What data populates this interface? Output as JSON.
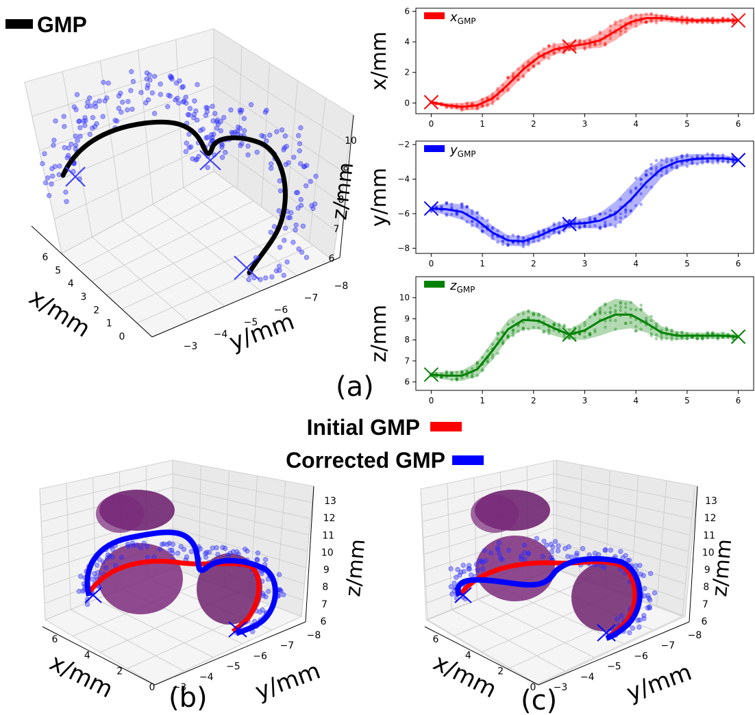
{
  "legend_top": {
    "label": "GMP",
    "color": "#000000"
  },
  "legend_bottom": [
    {
      "label": "Initial GMP",
      "color": "#ff0000"
    },
    {
      "label": "Corrected GMP",
      "color": "#0000ff"
    }
  ],
  "panels": {
    "a": "(a)",
    "b": "(b)",
    "c": "(c)"
  },
  "chart_data": [
    {
      "type": "scatter3d",
      "panel": "(a)",
      "xlabel": "x/mm",
      "ylabel": "y/mm",
      "zlabel": "z/mm",
      "x_ticks": [
        "6",
        "5",
        "4",
        "3",
        "2",
        "1",
        "0"
      ],
      "y_ticks": [
        "−3",
        "−4",
        "−5",
        "−6",
        "−7",
        "−8"
      ],
      "z_ticks": [
        "6",
        "7",
        "8",
        "9",
        "10"
      ],
      "series": [
        {
          "name": "GMP",
          "color": "#000000"
        }
      ]
    },
    {
      "type": "line",
      "panel": "(a) top",
      "ylabel": "x/mm",
      "legend": "x_GMP",
      "legend_main": "x",
      "legend_sub": "GMP",
      "color": "#ff0000",
      "xlim": [
        -0.3,
        6.3
      ],
      "ylim": [
        -0.7,
        6.2
      ],
      "x_ticks": [
        0,
        1,
        2,
        3,
        4,
        5,
        6
      ],
      "y_ticks": [
        0,
        2,
        4,
        6
      ],
      "mean": {
        "x": [
          0,
          0.3,
          0.6,
          0.9,
          1.2,
          1.5,
          1.8,
          2.1,
          2.4,
          2.7,
          3.0,
          3.3,
          3.6,
          3.9,
          4.2,
          4.5,
          4.8,
          5.1,
          5.4,
          5.7,
          6.0
        ],
        "y": [
          0.05,
          -0.15,
          -0.25,
          -0.15,
          0.3,
          1.2,
          2.2,
          3.0,
          3.5,
          3.7,
          3.85,
          4.1,
          4.7,
          5.3,
          5.55,
          5.55,
          5.45,
          5.4,
          5.4,
          5.4,
          5.4
        ]
      },
      "band": [
        0.05,
        0.15,
        0.25,
        0.3,
        0.35,
        0.45,
        0.45,
        0.4,
        0.35,
        0.3,
        0.3,
        0.5,
        0.6,
        0.45,
        0.3,
        0.2,
        0.2,
        0.15,
        0.15,
        0.15,
        0.1
      ],
      "via_points": [
        {
          "x": 0,
          "y": 0.05
        },
        {
          "x": 2.7,
          "y": 3.7
        },
        {
          "x": 6,
          "y": 5.4
        }
      ]
    },
    {
      "type": "line",
      "panel": "(a) middle",
      "ylabel": "y/mm",
      "legend": "y_GMP",
      "legend_main": "y",
      "legend_sub": "GMP",
      "color": "#0000ff",
      "xlim": [
        -0.3,
        6.3
      ],
      "ylim": [
        -8.3,
        -1.8
      ],
      "x_ticks": [
        0,
        1,
        2,
        3,
        4,
        5,
        6
      ],
      "y_ticks": [
        -8,
        -6,
        -4,
        -2
      ],
      "mean": {
        "x": [
          0,
          0.3,
          0.6,
          0.9,
          1.2,
          1.5,
          1.8,
          2.1,
          2.4,
          2.7,
          3.0,
          3.3,
          3.6,
          3.9,
          4.2,
          4.5,
          4.8,
          5.1,
          5.4,
          5.7,
          6.0
        ],
        "y": [
          -5.7,
          -5.75,
          -5.9,
          -6.4,
          -7.1,
          -7.55,
          -7.6,
          -7.3,
          -6.9,
          -6.6,
          -6.55,
          -6.4,
          -6.0,
          -5.2,
          -4.2,
          -3.4,
          -3.0,
          -2.85,
          -2.8,
          -2.8,
          -2.9
        ]
      },
      "band": [
        0.15,
        0.35,
        0.45,
        0.45,
        0.4,
        0.3,
        0.3,
        0.3,
        0.3,
        0.25,
        0.3,
        0.45,
        0.7,
        0.85,
        0.75,
        0.5,
        0.35,
        0.3,
        0.25,
        0.2,
        0.15
      ],
      "via_points": [
        {
          "x": 0,
          "y": -5.7
        },
        {
          "x": 2.7,
          "y": -6.6
        },
        {
          "x": 6,
          "y": -2.9
        }
      ]
    },
    {
      "type": "line",
      "panel": "(a) bottom",
      "ylabel": "z/mm",
      "legend": "z_GMP",
      "legend_main": "z",
      "legend_sub": "GMP",
      "color": "#008000",
      "xlim": [
        -0.3,
        6.3
      ],
      "ylim": [
        5.6,
        11.0
      ],
      "x_ticks": [
        0,
        1,
        2,
        3,
        4,
        5,
        6
      ],
      "y_ticks": [
        6,
        7,
        8,
        9,
        10
      ],
      "mean": {
        "x": [
          0,
          0.3,
          0.6,
          0.9,
          1.2,
          1.5,
          1.8,
          2.1,
          2.4,
          2.7,
          3.0,
          3.3,
          3.6,
          3.9,
          4.2,
          4.5,
          4.8,
          5.1,
          5.4,
          5.7,
          6.0
        ],
        "y": [
          6.35,
          6.3,
          6.3,
          6.6,
          7.5,
          8.5,
          8.95,
          8.9,
          8.55,
          8.25,
          8.45,
          8.9,
          9.2,
          9.2,
          8.8,
          8.35,
          8.2,
          8.2,
          8.2,
          8.2,
          8.15
        ]
      },
      "band": [
        0.1,
        0.2,
        0.25,
        0.35,
        0.45,
        0.45,
        0.45,
        0.4,
        0.35,
        0.25,
        0.45,
        0.7,
        0.75,
        0.65,
        0.45,
        0.3,
        0.2,
        0.15,
        0.15,
        0.15,
        0.1
      ],
      "via_points": [
        {
          "x": 0,
          "y": 6.35
        },
        {
          "x": 2.7,
          "y": 8.25
        },
        {
          "x": 6,
          "y": 8.15
        }
      ]
    },
    {
      "type": "scatter3d",
      "panel": "(b)",
      "xlabel": "x/mm",
      "ylabel": "y/mm",
      "zlabel": "z/mm",
      "x_ticks": [
        "6",
        "4",
        "2",
        "0"
      ],
      "y_ticks": [
        "−3",
        "−4",
        "−5",
        "−6",
        "−7",
        "−8"
      ],
      "z_ticks": [
        "6",
        "7",
        "8",
        "9",
        "10",
        "11",
        "12",
        "13"
      ],
      "series": [
        {
          "name": "Initial GMP",
          "color": "#ff0000"
        },
        {
          "name": "Corrected GMP",
          "color": "#0000ff"
        }
      ]
    },
    {
      "type": "scatter3d",
      "panel": "(c)",
      "xlabel": "x/mm",
      "ylabel": "y/mm",
      "zlabel": "z/mm",
      "x_ticks": [
        "6",
        "4",
        "2",
        "0"
      ],
      "y_ticks": [
        "−3",
        "−4",
        "−5",
        "−6",
        "−7",
        "−8"
      ],
      "z_ticks": [
        "6",
        "7",
        "8",
        "9",
        "10",
        "11",
        "12",
        "13"
      ],
      "series": [
        {
          "name": "Initial GMP",
          "color": "#ff0000"
        },
        {
          "name": "Corrected GMP",
          "color": "#0000ff"
        }
      ]
    }
  ]
}
